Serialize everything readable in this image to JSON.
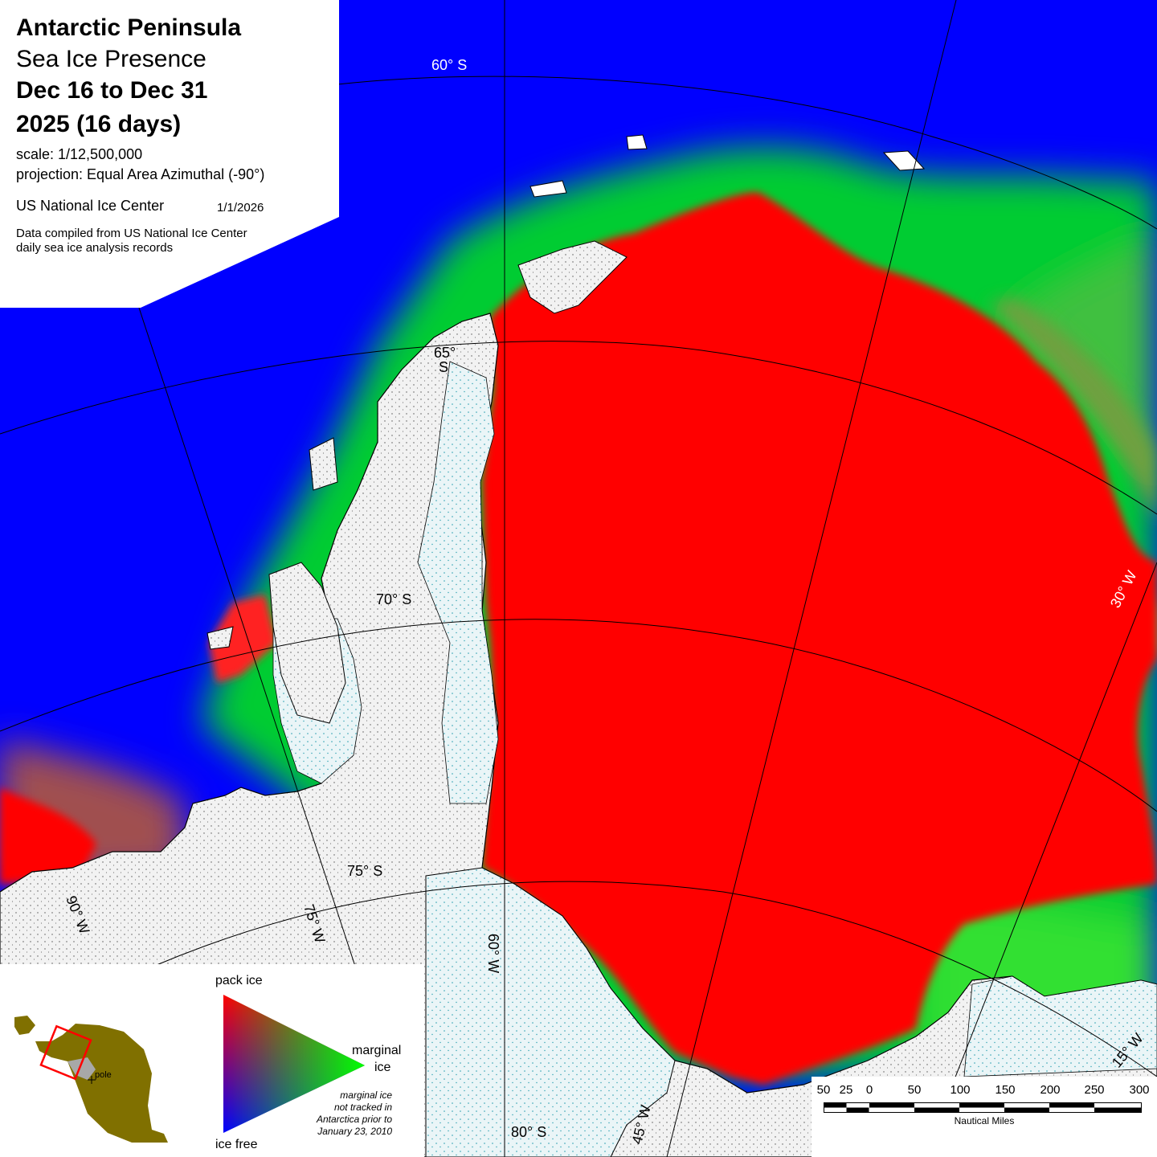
{
  "title": {
    "region": "Antarctic Peninsula",
    "product": "Sea Ice Presence",
    "date_range": "Dec 16 to Dec 31",
    "year_days": "2025   (16 days)",
    "scale": "scale: 1/12,500,000",
    "projection": "projection: Equal Area Azimuthal (-90°)",
    "agency": "US National Ice Center",
    "issue_date": "1/1/2026",
    "source_line1": "Data compiled from US National Ice Center",
    "source_line2": "daily sea ice analysis records"
  },
  "graticule": {
    "lat_60": "60°  S",
    "lat_65a": "65°",
    "lat_65b": "S",
    "lat_70": "70°  S",
    "lat_75": "75°  S",
    "lat_80": "80°  S",
    "lon_90": "90°  W",
    "lon_75": "75°  W",
    "lon_60": "60°  W",
    "lon_45": "45°  W",
    "lon_30": "30°  W",
    "lon_15": "15°  W"
  },
  "legend": {
    "pack_ice": "pack ice",
    "marginal_ice_1": "marginal",
    "marginal_ice_2": "ice",
    "ice_free": "ice free",
    "note_1": "marginal ice",
    "note_2": "not tracked in",
    "note_3": "Antarctica prior to",
    "note_4": "January 23, 2010",
    "pole": "pole",
    "colors": {
      "pack": "#ff0000",
      "marginal": "#00ff00",
      "free": "#0000ff",
      "land": "#807000",
      "frame": "#ff0000"
    }
  },
  "scale_bar": {
    "ticks": [
      "50",
      "25",
      "0",
      "50",
      "100",
      "150",
      "200",
      "250",
      "300"
    ],
    "unit": "Nautical Miles"
  },
  "colors": {
    "ocean_open": "#0000ff",
    "pack_ice": "#ff0000",
    "marginal_ice": "#00ff00",
    "land": "#eeeeee",
    "ice_shelf": "#e6f4f6"
  }
}
